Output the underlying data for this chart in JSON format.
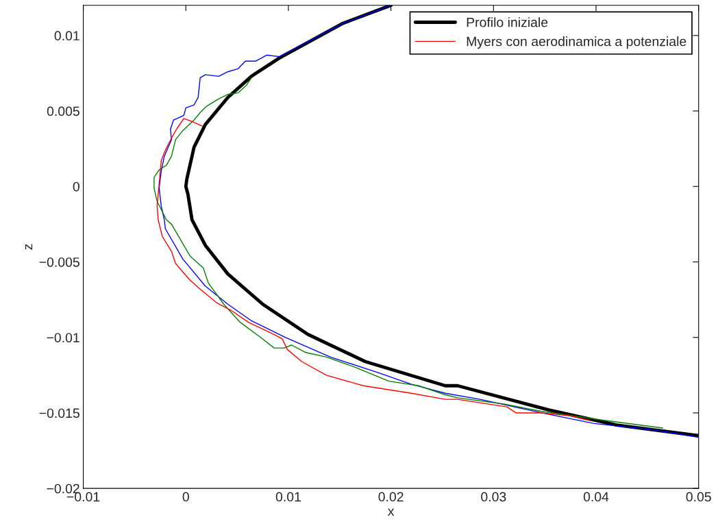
{
  "chart_data": {
    "type": "line",
    "xlabel": "x",
    "ylabel": "z",
    "xlim": [
      -0.01,
      0.05
    ],
    "xticks": [
      {
        "value": -0.01,
        "label": "−0.01"
      },
      0,
      0.01,
      0.02,
      0.03,
      0.04,
      0.05
    ],
    "ylim": [
      -0.02,
      0.012
    ],
    "yticks": [
      {
        "value": -0.02,
        "label": "−0.02"
      },
      {
        "value": -0.015,
        "label": "−0.015"
      },
      {
        "value": -0.01,
        "label": "−0.01"
      },
      {
        "value": -0.005,
        "label": "−0.005"
      },
      0,
      0.005,
      0.01
    ],
    "grid": false,
    "legend": "top right",
    "line_style": "solid",
    "marker": "none",
    "series": [
      {
        "name": "Profilo iniziale",
        "color": "#000000",
        "x": [
          0.02,
          0.0153,
          0.0091,
          0.0064,
          0.0041,
          0.0019,
          0.0008,
          0.0001,
          0.0,
          0.0002,
          0.0006,
          0.0019,
          0.0041,
          0.0075,
          0.0119,
          0.0175,
          0.0253,
          0.0265,
          0.0354,
          0.042,
          0.0499
        ],
        "values": [
          0.012,
          0.0108,
          0.0085,
          0.0073,
          0.0059,
          0.0041,
          0.0026,
          0.0005,
          0.0,
          -0.0005,
          -0.0022,
          -0.0039,
          -0.0058,
          -0.0078,
          -0.0098,
          -0.0116,
          -0.0132,
          -0.0132,
          -0.0148,
          -0.0158,
          -0.0165
        ]
      },
      {
        "color": "#0000ff",
        "x": [
          0.02,
          0.0153,
          0.0091,
          0.0079,
          0.0068,
          0.0058,
          0.0051,
          0.0041,
          0.0032,
          0.0019,
          0.0014,
          0.0012,
          0.0008,
          0.0,
          -0.0002,
          -0.0012,
          -0.0015,
          -0.0014,
          -0.0021,
          -0.0024,
          -0.0026,
          -0.0024,
          -0.0021,
          -0.002,
          -0.0003,
          0.0019,
          0.0041,
          0.0064,
          0.0097,
          0.0141,
          0.0186,
          0.022,
          0.0253,
          0.0287,
          0.0347,
          0.0398,
          0.0454,
          0.0499
        ],
        "values": [
          0.012,
          0.0108,
          0.0086,
          0.0087,
          0.0083,
          0.0083,
          0.0078,
          0.0076,
          0.0073,
          0.0074,
          0.0072,
          0.0059,
          0.0054,
          0.0052,
          0.0047,
          0.0044,
          0.0038,
          0.0031,
          0.002,
          0.001,
          -0.0001,
          -0.0013,
          -0.0022,
          -0.0028,
          -0.0048,
          -0.0066,
          -0.0078,
          -0.0089,
          -0.01,
          -0.0113,
          -0.0123,
          -0.0131,
          -0.0137,
          -0.0141,
          -0.015,
          -0.0157,
          -0.0161,
          -0.0166
        ]
      },
      {
        "color": "#008000",
        "x": [
          0.0064,
          0.0059,
          0.0051,
          0.0041,
          0.0032,
          0.002,
          0.0014,
          0.0008,
          -0.0003,
          -0.001,
          -0.0014,
          -0.0019,
          -0.0026,
          -0.0031,
          -0.0031,
          -0.0028,
          -0.0019,
          -0.0014,
          0.0004,
          0.0017,
          0.0022,
          0.0037,
          0.0053,
          0.0073,
          0.0086,
          0.0096,
          0.0103,
          0.0117,
          0.0137,
          0.0166,
          0.0198,
          0.0227,
          0.0253,
          0.0265,
          0.0309,
          0.0347,
          0.0409,
          0.0465
        ],
        "values": [
          0.0072,
          0.0067,
          0.0062,
          0.0061,
          0.0058,
          0.0053,
          0.0049,
          0.0044,
          0.0037,
          0.0031,
          0.002,
          0.0014,
          0.0011,
          0.0006,
          -0.0001,
          -0.001,
          -0.0022,
          -0.0025,
          -0.0046,
          -0.0054,
          -0.0064,
          -0.0078,
          -0.009,
          -0.01,
          -0.0107,
          -0.0107,
          -0.0105,
          -0.011,
          -0.0113,
          -0.012,
          -0.0129,
          -0.0132,
          -0.0138,
          -0.014,
          -0.0144,
          -0.0149,
          -0.0155,
          -0.016
        ]
      },
      {
        "name": "Myers con aerodinamica a potenziale",
        "color": "#ff0000",
        "x": [
          0.0016,
          0.0006,
          -0.0002,
          -0.0009,
          -0.0014,
          -0.002,
          -0.0024,
          -0.0026,
          -0.0028,
          -0.0027,
          -0.0023,
          -0.0014,
          -0.001,
          0.0004,
          0.0014,
          0.003,
          0.0044,
          0.0061,
          0.0086,
          0.0094,
          0.0099,
          0.0113,
          0.0137,
          0.0173,
          0.022,
          0.0253,
          0.0265,
          0.0313,
          0.0322,
          0.0347,
          0.0376,
          0.0394
        ],
        "values": [
          0.004,
          0.0043,
          0.0045,
          0.0038,
          0.0032,
          0.0024,
          0.0017,
          0.0002,
          -0.0013,
          -0.0022,
          -0.0033,
          -0.0043,
          -0.0051,
          -0.0062,
          -0.0068,
          -0.0077,
          -0.0082,
          -0.009,
          -0.0098,
          -0.0101,
          -0.0108,
          -0.0116,
          -0.0125,
          -0.0132,
          -0.0137,
          -0.0141,
          -0.0141,
          -0.0146,
          -0.015,
          -0.015,
          -0.0152,
          -0.0155
        ]
      }
    ]
  }
}
